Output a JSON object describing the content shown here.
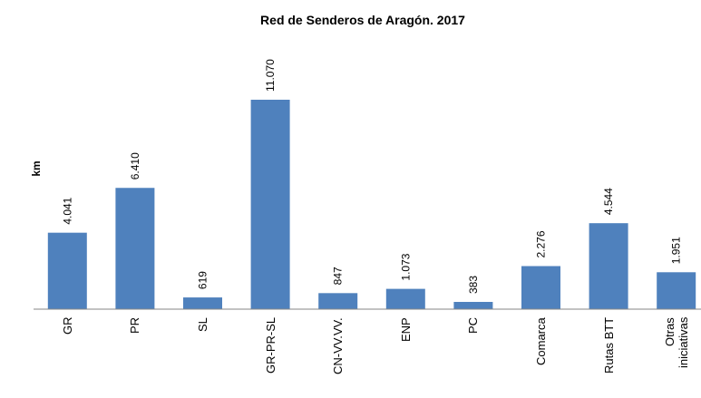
{
  "chart_data": {
    "type": "bar",
    "title": "Red de Senderos de Aragón. 2017",
    "y_label": "km",
    "categories": [
      "GR",
      "PR",
      "SL",
      "GR-PR-SL",
      "CN-VV.VV.",
      "ENP",
      "PC",
      "Comarca",
      "Rutas BTT",
      "Otras iniciativas"
    ],
    "values": [
      4041,
      6410,
      619,
      11070,
      847,
      1073,
      383,
      2276,
      4544,
      1951
    ],
    "value_labels": [
      "4.041",
      "6.410",
      "619",
      "11.070",
      "847",
      "1.073",
      "383",
      "2.276",
      "4.544",
      "1.951"
    ],
    "color": "#4f81bd",
    "ylim": [
      0,
      12000
    ]
  }
}
